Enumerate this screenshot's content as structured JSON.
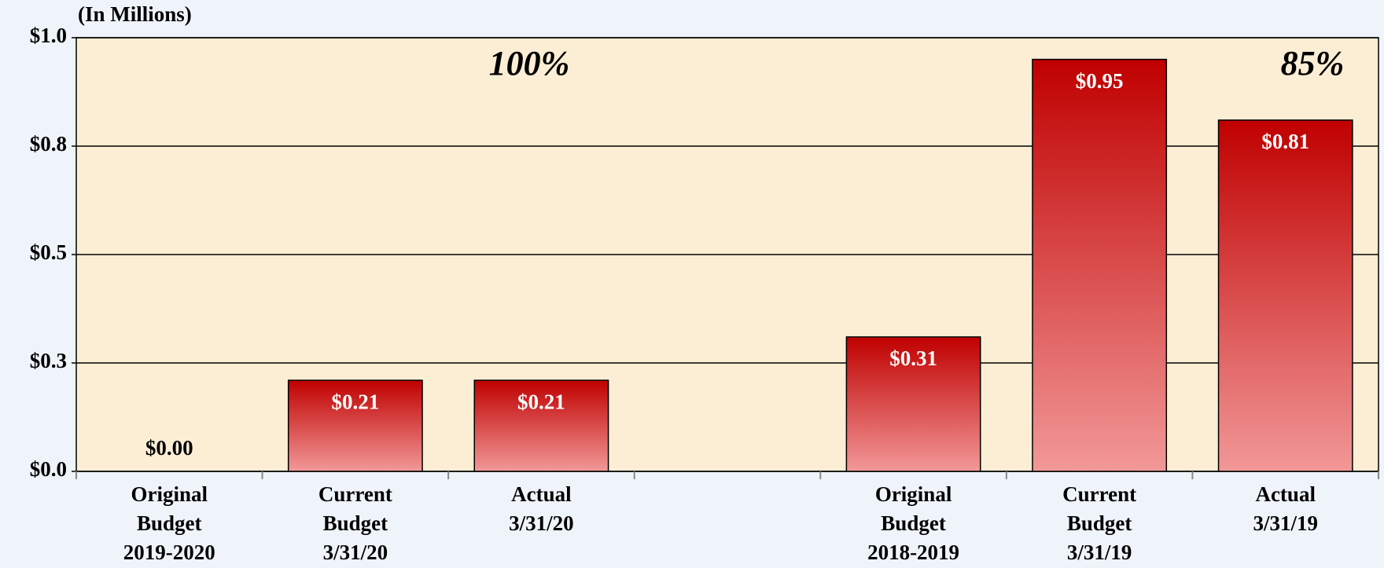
{
  "chart_data": {
    "type": "bar",
    "ylabel": "(In Millions)",
    "categories": [
      "Original Budget 2019-2020",
      "Current Budget 3/31/20",
      "Actual 3/31/20",
      null,
      "Original Budget 2018-2019",
      "Current Budget 3/31/19",
      "Actual 3/31/19"
    ],
    "values": [
      0,
      0.21,
      0.21,
      null,
      0.31,
      0.95,
      0.81
    ],
    "value_labels": [
      "$0.00",
      "$0.21",
      "$0.21",
      null,
      "$0.31",
      "$0.95",
      "$0.81"
    ],
    "color": "#c00000",
    "ylim": [
      0,
      1
    ],
    "yticks": [
      {
        "value": 0,
        "label": "$0.0"
      },
      {
        "value": 0.25,
        "label": "$0.3"
      },
      {
        "value": 0.5,
        "label": "$0.5"
      },
      {
        "value": 0.75,
        "label": "$0.8"
      },
      {
        "value": 1,
        "label": "$1.0"
      }
    ],
    "grid": true,
    "annotations": [
      "100%",
      "85%"
    ]
  }
}
